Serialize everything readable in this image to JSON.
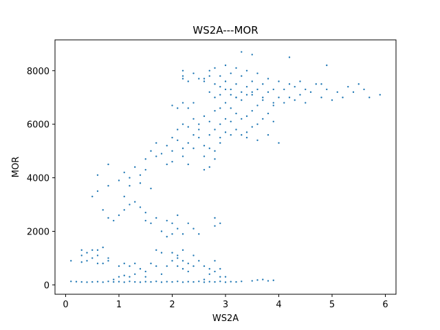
{
  "chart_data": {
    "type": "scatter",
    "title": "WS2A---MOR",
    "xlabel": "WS2A",
    "ylabel": "MOR",
    "xlim": [
      -0.2,
      6.2
    ],
    "ylim": [
      -350,
      9150
    ],
    "xticks": [
      0,
      1,
      2,
      3,
      4,
      5,
      6
    ],
    "xtick_labels": [
      "0",
      "1",
      "2",
      "3",
      "4",
      "5",
      "6"
    ],
    "yticks": [
      0,
      2000,
      4000,
      6000,
      8000
    ],
    "ytick_labels": [
      "0",
      "2000",
      "4000",
      "6000",
      "8000"
    ],
    "grid": false,
    "color": "#1f77b4",
    "series": [
      {
        "points": [
          [
            0.1,
            900
          ],
          [
            0.3,
            1100
          ],
          [
            0.3,
            1300
          ],
          [
            0.4,
            1200
          ],
          [
            0.5,
            1000
          ],
          [
            0.5,
            1300
          ],
          [
            0.6,
            1100
          ],
          [
            0.6,
            1300
          ],
          [
            0.7,
            1400
          ],
          [
            0.8,
            900
          ],
          [
            0.8,
            1000
          ],
          [
            0.6,
            800
          ],
          [
            0.7,
            800
          ],
          [
            0.4,
            900
          ],
          [
            0.3,
            850
          ],
          [
            0.9,
            200
          ],
          [
            1.0,
            300
          ],
          [
            1.1,
            350
          ],
          [
            1.0,
            700
          ],
          [
            1.1,
            800
          ],
          [
            1.2,
            700
          ],
          [
            1.3,
            800
          ],
          [
            1.3,
            400
          ],
          [
            1.2,
            300
          ],
          [
            1.4,
            600
          ],
          [
            1.5,
            500
          ],
          [
            1.6,
            800
          ],
          [
            1.7,
            700
          ],
          [
            1.5,
            300
          ],
          [
            1.8,
            400
          ],
          [
            1.9,
            700
          ],
          [
            2.0,
            900
          ],
          [
            2.1,
            1000
          ],
          [
            2.1,
            700
          ],
          [
            2.2,
            900
          ],
          [
            2.2,
            600
          ],
          [
            2.3,
            800
          ],
          [
            2.3,
            500
          ],
          [
            2.4,
            700
          ],
          [
            2.4,
            1100
          ],
          [
            2.5,
            900
          ],
          [
            2.0,
            1200
          ],
          [
            2.1,
            1100
          ],
          [
            2.6,
            700
          ],
          [
            2.7,
            600
          ],
          [
            2.6,
            200
          ],
          [
            2.7,
            400
          ],
          [
            2.8,
            900
          ],
          [
            2.8,
            500
          ],
          [
            2.9,
            300
          ],
          [
            2.9,
            600
          ],
          [
            3.0,
            300
          ],
          [
            2.2,
            1300
          ],
          [
            1.7,
            1300
          ],
          [
            1.8,
            1200
          ],
          [
            0.1,
            130
          ],
          [
            0.2,
            120
          ],
          [
            0.3,
            110
          ],
          [
            0.4,
            100
          ],
          [
            0.5,
            110
          ],
          [
            0.6,
            120
          ],
          [
            0.7,
            100
          ],
          [
            0.8,
            130
          ],
          [
            0.9,
            110
          ],
          [
            1.0,
            120
          ],
          [
            1.1,
            100
          ],
          [
            1.2,
            130
          ],
          [
            1.3,
            110
          ],
          [
            1.4,
            100
          ],
          [
            1.5,
            120
          ],
          [
            1.6,
            110
          ],
          [
            1.7,
            130
          ],
          [
            1.8,
            100
          ],
          [
            1.9,
            120
          ],
          [
            2.0,
            110
          ],
          [
            2.1,
            130
          ],
          [
            2.2,
            100
          ],
          [
            2.3,
            120
          ],
          [
            2.4,
            110
          ],
          [
            2.5,
            130
          ],
          [
            2.6,
            100
          ],
          [
            2.7,
            120
          ],
          [
            2.8,
            110
          ],
          [
            2.9,
            130
          ],
          [
            3.0,
            100
          ],
          [
            3.1,
            120
          ],
          [
            3.2,
            110
          ],
          [
            3.3,
            130
          ],
          [
            3.5,
            150
          ],
          [
            3.6,
            180
          ],
          [
            3.7,
            200
          ],
          [
            3.8,
            150
          ],
          [
            3.9,
            170
          ],
          [
            0.5,
            3300
          ],
          [
            0.6,
            3500
          ],
          [
            0.7,
            2800
          ],
          [
            0.8,
            2500
          ],
          [
            0.8,
            3700
          ],
          [
            0.9,
            2400
          ],
          [
            1.0,
            2600
          ],
          [
            1.1,
            2800
          ],
          [
            1.1,
            3300
          ],
          [
            1.2,
            3000
          ],
          [
            1.3,
            3100
          ],
          [
            1.4,
            2900
          ],
          [
            1.5,
            2700
          ],
          [
            1.5,
            2400
          ],
          [
            1.6,
            2300
          ],
          [
            1.7,
            2500
          ],
          [
            1.8,
            2000
          ],
          [
            1.9,
            1800
          ],
          [
            2.0,
            2300
          ],
          [
            2.0,
            1900
          ],
          [
            2.1,
            2100
          ],
          [
            2.2,
            1900
          ],
          [
            2.3,
            2300
          ],
          [
            2.4,
            2100
          ],
          [
            2.5,
            1900
          ],
          [
            2.8,
            2200
          ],
          [
            2.8,
            2500
          ],
          [
            2.9,
            2300
          ],
          [
            1.9,
            2400
          ],
          [
            2.1,
            2600
          ],
          [
            0.6,
            4100
          ],
          [
            0.8,
            4500
          ],
          [
            1.0,
            3900
          ],
          [
            1.1,
            4200
          ],
          [
            1.2,
            4000
          ],
          [
            1.3,
            4400
          ],
          [
            1.4,
            4100
          ],
          [
            1.5,
            4700
          ],
          [
            1.5,
            4300
          ],
          [
            1.6,
            5000
          ],
          [
            1.7,
            5300
          ],
          [
            1.7,
            4800
          ],
          [
            1.8,
            4900
          ],
          [
            1.9,
            5200
          ],
          [
            1.9,
            4500
          ],
          [
            2.0,
            5000
          ],
          [
            2.0,
            4600
          ],
          [
            2.1,
            5400
          ],
          [
            2.2,
            5100
          ],
          [
            2.2,
            4800
          ],
          [
            2.3,
            5300
          ],
          [
            2.3,
            4500
          ],
          [
            2.4,
            5100
          ],
          [
            2.4,
            5600
          ],
          [
            2.5,
            5500
          ],
          [
            2.5,
            5800
          ],
          [
            2.6,
            5200
          ],
          [
            2.6,
            4800
          ],
          [
            2.7,
            5600
          ],
          [
            2.7,
            5100
          ],
          [
            2.6,
            4300
          ],
          [
            2.7,
            4400
          ],
          [
            2.8,
            4700
          ],
          [
            2.8,
            5000
          ],
          [
            2.9,
            5300
          ],
          [
            2.9,
            5500
          ],
          [
            1.2,
            3700
          ],
          [
            1.4,
            3800
          ],
          [
            1.6,
            3600
          ],
          [
            2.5,
            6000
          ],
          [
            2.6,
            6300
          ],
          [
            2.7,
            6100
          ],
          [
            2.8,
            5800
          ],
          [
            2.8,
            6500
          ],
          [
            2.9,
            6000
          ],
          [
            2.9,
            6600
          ],
          [
            3.0,
            5700
          ],
          [
            3.0,
            6200
          ],
          [
            3.0,
            6800
          ],
          [
            3.1,
            5600
          ],
          [
            3.1,
            6100
          ],
          [
            3.1,
            6600
          ],
          [
            3.2,
            5800
          ],
          [
            3.2,
            6400
          ],
          [
            3.2,
            7000
          ],
          [
            3.3,
            5600
          ],
          [
            3.3,
            6200
          ],
          [
            3.3,
            6900
          ],
          [
            3.4,
            5700
          ],
          [
            3.4,
            6300
          ],
          [
            3.4,
            7100
          ],
          [
            3.5,
            5900
          ],
          [
            3.5,
            6500
          ],
          [
            3.5,
            7200
          ],
          [
            3.6,
            6000
          ],
          [
            3.6,
            6700
          ],
          [
            3.7,
            6200
          ],
          [
            3.7,
            6900
          ],
          [
            3.8,
            6400
          ],
          [
            3.9,
            6700
          ],
          [
            3.6,
            5400
          ],
          [
            3.4,
            5500
          ],
          [
            3.8,
            5600
          ],
          [
            3.9,
            6100
          ],
          [
            4.0,
            5300
          ],
          [
            2.4,
            6200
          ],
          [
            2.3,
            5900
          ],
          [
            2.2,
            6000
          ],
          [
            2.1,
            5800
          ],
          [
            2.0,
            5500
          ],
          [
            2.2,
            7700
          ],
          [
            2.2,
            8000
          ],
          [
            2.3,
            7600
          ],
          [
            2.4,
            7900
          ],
          [
            2.5,
            7700
          ],
          [
            2.6,
            7600
          ],
          [
            2.7,
            8000
          ],
          [
            2.7,
            7800
          ],
          [
            2.8,
            7500
          ],
          [
            2.8,
            8100
          ],
          [
            2.9,
            7400
          ],
          [
            2.9,
            7800
          ],
          [
            3.0,
            7600
          ],
          [
            3.0,
            8200
          ],
          [
            3.1,
            7300
          ],
          [
            3.1,
            7900
          ],
          [
            3.2,
            7500
          ],
          [
            3.2,
            8100
          ],
          [
            3.3,
            7200
          ],
          [
            3.3,
            7800
          ],
          [
            3.3,
            8700
          ],
          [
            3.4,
            7400
          ],
          [
            3.4,
            8000
          ],
          [
            3.5,
            7100
          ],
          [
            3.5,
            7600
          ],
          [
            3.5,
            8600
          ],
          [
            3.6,
            7300
          ],
          [
            3.6,
            7900
          ],
          [
            3.7,
            7000
          ],
          [
            3.7,
            7500
          ],
          [
            3.8,
            7200
          ],
          [
            3.8,
            7700
          ],
          [
            3.9,
            6800
          ],
          [
            3.9,
            7300
          ],
          [
            4.0,
            7000
          ],
          [
            4.0,
            7600
          ],
          [
            4.1,
            6800
          ],
          [
            4.1,
            7300
          ],
          [
            4.2,
            7000
          ],
          [
            4.2,
            7500
          ],
          [
            4.2,
            8500
          ],
          [
            4.3,
            6900
          ],
          [
            4.3,
            7400
          ],
          [
            4.4,
            7100
          ],
          [
            4.4,
            7600
          ],
          [
            4.5,
            6800
          ],
          [
            4.5,
            7300
          ],
          [
            4.6,
            7200
          ],
          [
            4.7,
            7500
          ],
          [
            4.8,
            7000
          ],
          [
            4.8,
            7500
          ],
          [
            4.9,
            7300
          ],
          [
            4.9,
            8200
          ],
          [
            5.0,
            6900
          ],
          [
            5.1,
            7200
          ],
          [
            5.2,
            7000
          ],
          [
            5.3,
            7400
          ],
          [
            5.4,
            7200
          ],
          [
            5.5,
            7500
          ],
          [
            5.6,
            7300
          ],
          [
            5.7,
            7000
          ],
          [
            5.9,
            7100
          ],
          [
            2.3,
            6600
          ],
          [
            2.4,
            6800
          ],
          [
            2.0,
            6700
          ],
          [
            2.1,
            6600
          ],
          [
            2.2,
            6800
          ],
          [
            2.2,
            7800
          ],
          [
            2.6,
            7700
          ],
          [
            2.7,
            7200
          ],
          [
            2.8,
            7000
          ],
          [
            2.9,
            7100
          ],
          [
            3.0,
            7300
          ],
          [
            3.1,
            7100
          ],
          [
            3.2,
            7000
          ]
        ]
      }
    ]
  }
}
